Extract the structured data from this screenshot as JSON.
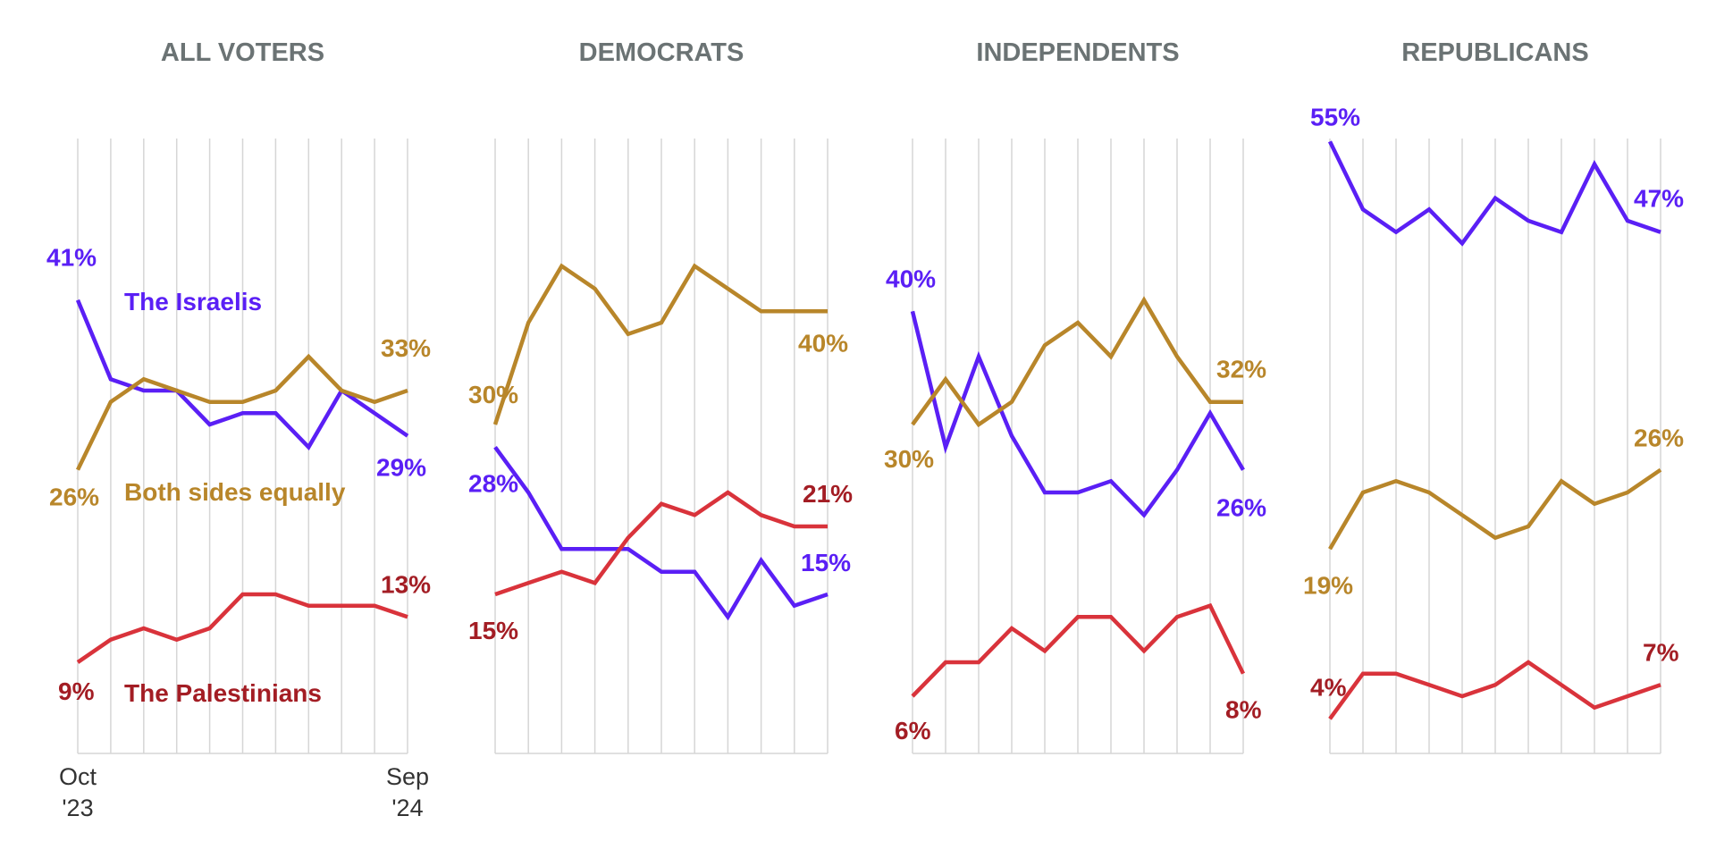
{
  "colors": {
    "israelis": "#5a1ff5",
    "both": "#b8862a",
    "palestinians_line": "#d9333b",
    "palestinians_label": "#a31d24",
    "grid": "#d6d6d6",
    "title": "#6b7374"
  },
  "x_axis": {
    "start_label": [
      "Oct",
      "'23"
    ],
    "end_label": [
      "Sep",
      "'24"
    ]
  },
  "series_labels": {
    "israelis": "The Israelis",
    "both": "Both sides equally",
    "palestinians": "The Palestinians"
  },
  "chart_data": [
    {
      "type": "line",
      "title": "ALL VOTERS",
      "x": [
        1,
        2,
        3,
        4,
        5,
        6,
        7,
        8,
        9,
        10,
        11
      ],
      "ylim": [
        0,
        60
      ],
      "grid": "vertical",
      "series": [
        {
          "name": "The Israelis",
          "key": "israelis",
          "values": [
            41,
            34,
            33,
            33,
            30,
            31,
            31,
            28,
            33,
            31,
            29
          ],
          "start_label": "41%",
          "end_label": "29%"
        },
        {
          "name": "Both sides equally",
          "key": "both",
          "values": [
            26,
            32,
            34,
            33,
            32,
            32,
            33,
            36,
            33,
            32,
            33
          ],
          "start_label": "26%",
          "end_label": "33%"
        },
        {
          "name": "The Palestinians",
          "key": "palestinians",
          "values": [
            9,
            11,
            12,
            11,
            12,
            15,
            15,
            14,
            14,
            14,
            13
          ],
          "start_label": "9%",
          "end_label": "13%"
        }
      ]
    },
    {
      "type": "line",
      "title": "DEMOCRATS",
      "x": [
        1,
        2,
        3,
        4,
        5,
        6,
        7,
        8,
        9,
        10,
        11
      ],
      "ylim": [
        0,
        60
      ],
      "grid": "vertical",
      "series": [
        {
          "name": "The Israelis",
          "key": "israelis",
          "values": [
            28,
            24,
            19,
            19,
            19,
            17,
            17,
            13,
            18,
            14,
            15
          ],
          "start_label": "28%",
          "end_label": "15%"
        },
        {
          "name": "Both sides equally",
          "key": "both",
          "values": [
            30,
            39,
            44,
            42,
            38,
            39,
            44,
            42,
            40,
            40,
            40
          ],
          "start_label": "30%",
          "end_label": "40%"
        },
        {
          "name": "The Palestinians",
          "key": "palestinians",
          "values": [
            15,
            16,
            17,
            16,
            20,
            23,
            22,
            24,
            22,
            21,
            21
          ],
          "start_label": "15%",
          "end_label": "21%"
        }
      ]
    },
    {
      "type": "line",
      "title": "INDEPENDENTS",
      "x": [
        1,
        2,
        3,
        4,
        5,
        6,
        7,
        8,
        9,
        10,
        11
      ],
      "ylim": [
        0,
        60
      ],
      "grid": "vertical",
      "series": [
        {
          "name": "The Israelis",
          "key": "israelis",
          "values": [
            40,
            28,
            36,
            29,
            24,
            24,
            25,
            22,
            26,
            31,
            26
          ],
          "start_label": "40%",
          "end_label": "26%"
        },
        {
          "name": "Both sides equally",
          "key": "both",
          "values": [
            30,
            34,
            30,
            32,
            37,
            39,
            36,
            41,
            36,
            32,
            32
          ],
          "start_label": "30%",
          "end_label": "32%"
        },
        {
          "name": "The Palestinians",
          "key": "palestinians",
          "values": [
            6,
            9,
            9,
            12,
            10,
            13,
            13,
            10,
            13,
            14,
            8
          ],
          "start_label": "6%",
          "end_label": "8%"
        }
      ]
    },
    {
      "type": "line",
      "title": "REPUBLICANS",
      "x": [
        1,
        2,
        3,
        4,
        5,
        6,
        7,
        8,
        9,
        10,
        11
      ],
      "ylim": [
        0,
        60
      ],
      "grid": "vertical",
      "series": [
        {
          "name": "The Israelis",
          "key": "israelis",
          "values": [
            55,
            49,
            47,
            49,
            46,
            50,
            48,
            47,
            53,
            48,
            47
          ],
          "start_label": "55%",
          "end_label": "47%"
        },
        {
          "name": "Both sides equally",
          "key": "both",
          "values": [
            19,
            24,
            25,
            24,
            22,
            20,
            21,
            25,
            23,
            24,
            26
          ],
          "start_label": "19%",
          "end_label": "26%"
        },
        {
          "name": "The Palestinians",
          "key": "palestinians",
          "values": [
            4,
            8,
            8,
            7,
            6,
            7,
            9,
            7,
            5,
            6,
            7
          ],
          "start_label": "4%",
          "end_label": "7%"
        }
      ]
    }
  ]
}
